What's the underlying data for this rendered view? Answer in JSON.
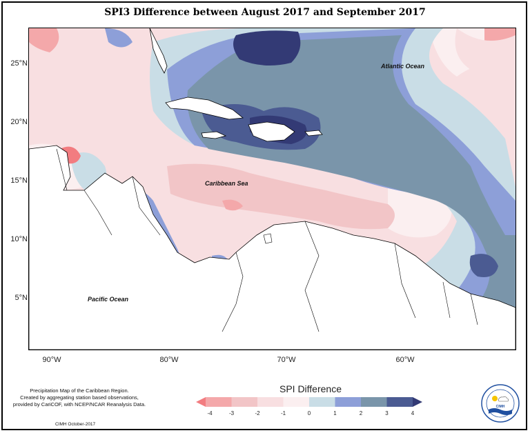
{
  "title": "SPI3 Difference between August 2017 and September 2017",
  "map": {
    "labels": {
      "atlantic": "Atlantic Ocean",
      "caribbean": "Caribbean Sea",
      "pacific": "Pacific Ocean"
    },
    "lat_ticks": [
      "25°N",
      "20°N",
      "15°N",
      "10°N",
      "5°N"
    ],
    "lon_ticks": [
      "90°W",
      "80°W",
      "70°W",
      "60°W"
    ]
  },
  "legend": {
    "title": "SPI Difference",
    "ticks": [
      "-4",
      "-3",
      "-2",
      "-1",
      "0",
      "1",
      "2",
      "3",
      "4"
    ],
    "colors": [
      "#f27c80",
      "#f4a8aa",
      "#f2c5c7",
      "#f8dfe1",
      "#fbeff0",
      "#c9dde6",
      "#8d9fd8",
      "#7a95aa",
      "#4b5b92",
      "#333a75"
    ]
  },
  "footnote": {
    "line1": "Precipitation Map of the Caribbean Region.",
    "line2": "Created by aggregating station based observations,",
    "line3": "provided by CariCOF, with NCEP/NCAR Reanalysis Data."
  },
  "credit": "CIMH October-2017",
  "logo": {
    "text": "CIMH",
    "icon": "cimh-sun-cloud-logo"
  }
}
